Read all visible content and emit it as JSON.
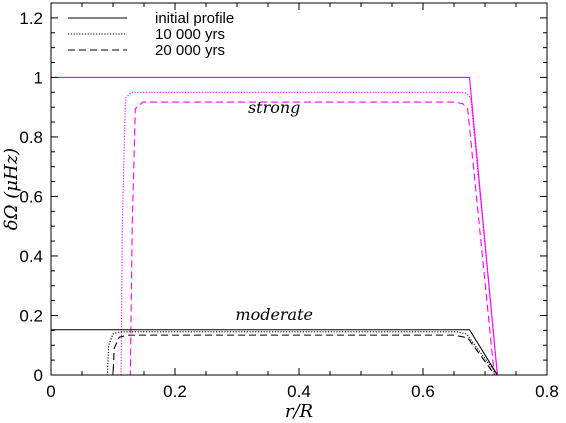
{
  "chart_data": {
    "type": "line",
    "xlabel": "r/R",
    "ylabel": "δΩ (μHz)",
    "xlim": [
      0,
      0.8
    ],
    "ylim": [
      0,
      1.25
    ],
    "xticks": [
      0,
      0.2,
      0.4,
      0.6,
      0.8
    ],
    "xtick_labels": [
      "0",
      "0.2",
      "0.4",
      "0.6",
      "0.8"
    ],
    "yticks": [
      0,
      0.2,
      0.4,
      0.6,
      0.8,
      1,
      1.2
    ],
    "ytick_labels": [
      "0",
      "0.2",
      "0.4",
      "0.6",
      "0.8",
      "1",
      "1.2"
    ],
    "grid": false,
    "legend_position": "top-left",
    "legend": [
      {
        "label": "initial profile",
        "dash": "solid"
      },
      {
        "label": "10 000 yrs",
        "dash": "dotted"
      },
      {
        "label": "20 000 yrs",
        "dash": "dashed"
      }
    ],
    "annotations": [
      {
        "text": "strong",
        "x": 0.36,
        "y": 0.88
      },
      {
        "text": "moderate",
        "x": 0.36,
        "y": 0.185
      }
    ],
    "colors": {
      "strong": "#ff00ff",
      "moderate": "#000000"
    },
    "series": [
      {
        "group": "strong",
        "dash": "solid",
        "x": [
          0,
          0.675,
          0.72,
          0.8
        ],
        "y": [
          1.0,
          1.0,
          0,
          0
        ]
      },
      {
        "group": "strong",
        "dash": "dotted",
        "x": [
          0,
          0.113,
          0.115,
          0.12,
          0.13,
          0.655,
          0.67,
          0.677,
          0.72,
          0.8
        ],
        "y": [
          0,
          0,
          0.5,
          0.93,
          0.95,
          0.95,
          0.947,
          0.93,
          0,
          0
        ]
      },
      {
        "group": "strong",
        "dash": "dashed",
        "x": [
          0,
          0.128,
          0.131,
          0.136,
          0.148,
          0.648,
          0.664,
          0.672,
          0.715,
          0.8
        ],
        "y": [
          0,
          0,
          0.5,
          0.895,
          0.917,
          0.917,
          0.912,
          0.895,
          0,
          0
        ]
      },
      {
        "group": "moderate",
        "dash": "solid",
        "x": [
          0,
          0.675,
          0.72,
          0.8
        ],
        "y": [
          0.152,
          0.152,
          0,
          0
        ]
      },
      {
        "group": "moderate",
        "dash": "dotted",
        "x": [
          0,
          0.091,
          0.093,
          0.1,
          0.111,
          0.655,
          0.67,
          0.72,
          0.8
        ],
        "y": [
          0,
          0,
          0.1,
          0.138,
          0.145,
          0.145,
          0.138,
          0,
          0
        ]
      },
      {
        "group": "moderate",
        "dash": "dashed",
        "x": [
          0,
          0.1,
          0.102,
          0.11,
          0.124,
          0.65,
          0.672,
          0.716,
          0.8
        ],
        "y": [
          0,
          0,
          0.09,
          0.127,
          0.134,
          0.134,
          0.125,
          0,
          0
        ]
      }
    ]
  }
}
